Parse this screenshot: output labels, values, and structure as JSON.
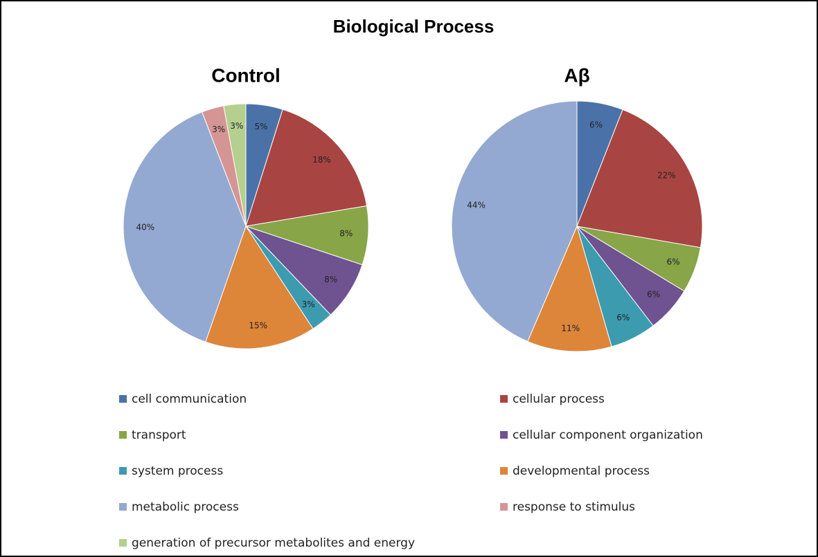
{
  "title": "Biological Process",
  "chart_data": [
    {
      "type": "pie",
      "title": "Control",
      "categories": [
        "cell communication",
        "cellular process",
        "transport",
        "cellular component organization",
        "system process",
        "developmental process",
        "metabolic process",
        "response to stimulus",
        "generation of precursor metabolites and energy"
      ],
      "values": [
        5,
        18,
        8,
        8,
        3,
        15,
        40,
        3,
        3
      ],
      "value_labels": [
        "5%",
        "18%",
        "8%",
        "8%",
        "3%",
        "15%",
        "40%",
        "3%",
        "3%"
      ],
      "colors": [
        "#4a72a8",
        "#a84542",
        "#88a548",
        "#6f5290",
        "#3d9bb0",
        "#dd8539",
        "#93a9d1",
        "#d69595",
        "#b5cf8f"
      ]
    },
    {
      "type": "pie",
      "title": "Aβ",
      "categories": [
        "cell communication",
        "cellular process",
        "transport",
        "cellular component organization",
        "system process",
        "developmental process",
        "metabolic process"
      ],
      "values": [
        6,
        22,
        6,
        6,
        6,
        11,
        44
      ],
      "value_labels": [
        "6%",
        "22%",
        "6%",
        "6%",
        "6%",
        "11%",
        "44%"
      ],
      "colors": [
        "#4a72a8",
        "#a84542",
        "#88a548",
        "#6f5290",
        "#3d9bb0",
        "#dd8539",
        "#93a9d1"
      ]
    }
  ]
}
